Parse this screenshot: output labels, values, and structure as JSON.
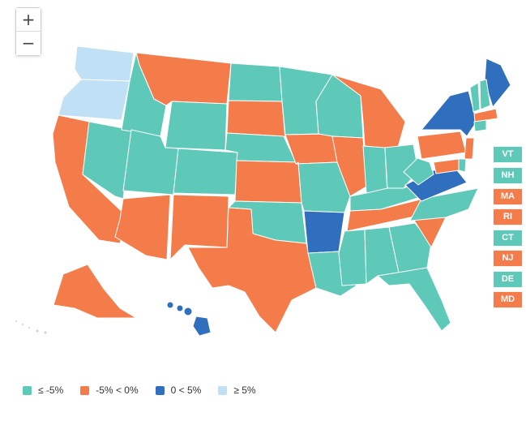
{
  "zoom": {
    "in_label": "+",
    "out_label": "−"
  },
  "colors": {
    "le_neg5": "#5ec8b9",
    "neg5_to_0": "#f47c4b",
    "zero_to_5": "#2f6fbd",
    "ge_5": "#bfe0f5"
  },
  "legend": [
    {
      "label": "≤ -5%",
      "color_key": "le_neg5"
    },
    {
      "label": "-5% < 0%",
      "color_key": "neg5_to_0"
    },
    {
      "label": "0 < 5%",
      "color_key": "zero_to_5"
    },
    {
      "label": "≥ 5%",
      "color_key": "ge_5"
    }
  ],
  "small_states": [
    {
      "abbr": "VT",
      "color_key": "le_neg5"
    },
    {
      "abbr": "NH",
      "color_key": "le_neg5"
    },
    {
      "abbr": "MA",
      "color_key": "neg5_to_0"
    },
    {
      "abbr": "RI",
      "color_key": "neg5_to_0"
    },
    {
      "abbr": "CT",
      "color_key": "le_neg5"
    },
    {
      "abbr": "NJ",
      "color_key": "neg5_to_0"
    },
    {
      "abbr": "DE",
      "color_key": "le_neg5"
    },
    {
      "abbr": "MD",
      "color_key": "neg5_to_0"
    }
  ],
  "states": [
    {
      "abbr": "WA",
      "color_key": "ge_5"
    },
    {
      "abbr": "OR",
      "color_key": "ge_5"
    },
    {
      "abbr": "CA",
      "color_key": "neg5_to_0"
    },
    {
      "abbr": "NV",
      "color_key": "le_neg5"
    },
    {
      "abbr": "ID",
      "color_key": "le_neg5"
    },
    {
      "abbr": "MT",
      "color_key": "neg5_to_0"
    },
    {
      "abbr": "WY",
      "color_key": "le_neg5"
    },
    {
      "abbr": "UT",
      "color_key": "le_neg5"
    },
    {
      "abbr": "AZ",
      "color_key": "neg5_to_0"
    },
    {
      "abbr": "CO",
      "color_key": "le_neg5"
    },
    {
      "abbr": "NM",
      "color_key": "neg5_to_0"
    },
    {
      "abbr": "ND",
      "color_key": "le_neg5"
    },
    {
      "abbr": "SD",
      "color_key": "neg5_to_0"
    },
    {
      "abbr": "NE",
      "color_key": "le_neg5"
    },
    {
      "abbr": "KS",
      "color_key": "neg5_to_0"
    },
    {
      "abbr": "OK",
      "color_key": "le_neg5"
    },
    {
      "abbr": "TX",
      "color_key": "neg5_to_0"
    },
    {
      "abbr": "MN",
      "color_key": "le_neg5"
    },
    {
      "abbr": "IA",
      "color_key": "neg5_to_0"
    },
    {
      "abbr": "MO",
      "color_key": "le_neg5"
    },
    {
      "abbr": "AR",
      "color_key": "zero_to_5"
    },
    {
      "abbr": "LA",
      "color_key": "le_neg5"
    },
    {
      "abbr": "WI",
      "color_key": "le_neg5"
    },
    {
      "abbr": "IL",
      "color_key": "neg5_to_0"
    },
    {
      "abbr": "MI",
      "color_key": "neg5_to_0"
    },
    {
      "abbr": "IN",
      "color_key": "le_neg5"
    },
    {
      "abbr": "OH",
      "color_key": "le_neg5"
    },
    {
      "abbr": "KY",
      "color_key": "le_neg5"
    },
    {
      "abbr": "TN",
      "color_key": "neg5_to_0"
    },
    {
      "abbr": "MS",
      "color_key": "le_neg5"
    },
    {
      "abbr": "AL",
      "color_key": "le_neg5"
    },
    {
      "abbr": "GA",
      "color_key": "le_neg5"
    },
    {
      "abbr": "FL",
      "color_key": "le_neg5"
    },
    {
      "abbr": "SC",
      "color_key": "neg5_to_0"
    },
    {
      "abbr": "NC",
      "color_key": "le_neg5"
    },
    {
      "abbr": "VA",
      "color_key": "zero_to_5"
    },
    {
      "abbr": "WV",
      "color_key": "le_neg5"
    },
    {
      "abbr": "PA",
      "color_key": "neg5_to_0"
    },
    {
      "abbr": "NY",
      "color_key": "zero_to_5"
    },
    {
      "abbr": "ME",
      "color_key": "zero_to_5"
    },
    {
      "abbr": "AK",
      "color_key": "neg5_to_0"
    },
    {
      "abbr": "HI",
      "color_key": "zero_to_5"
    }
  ]
}
